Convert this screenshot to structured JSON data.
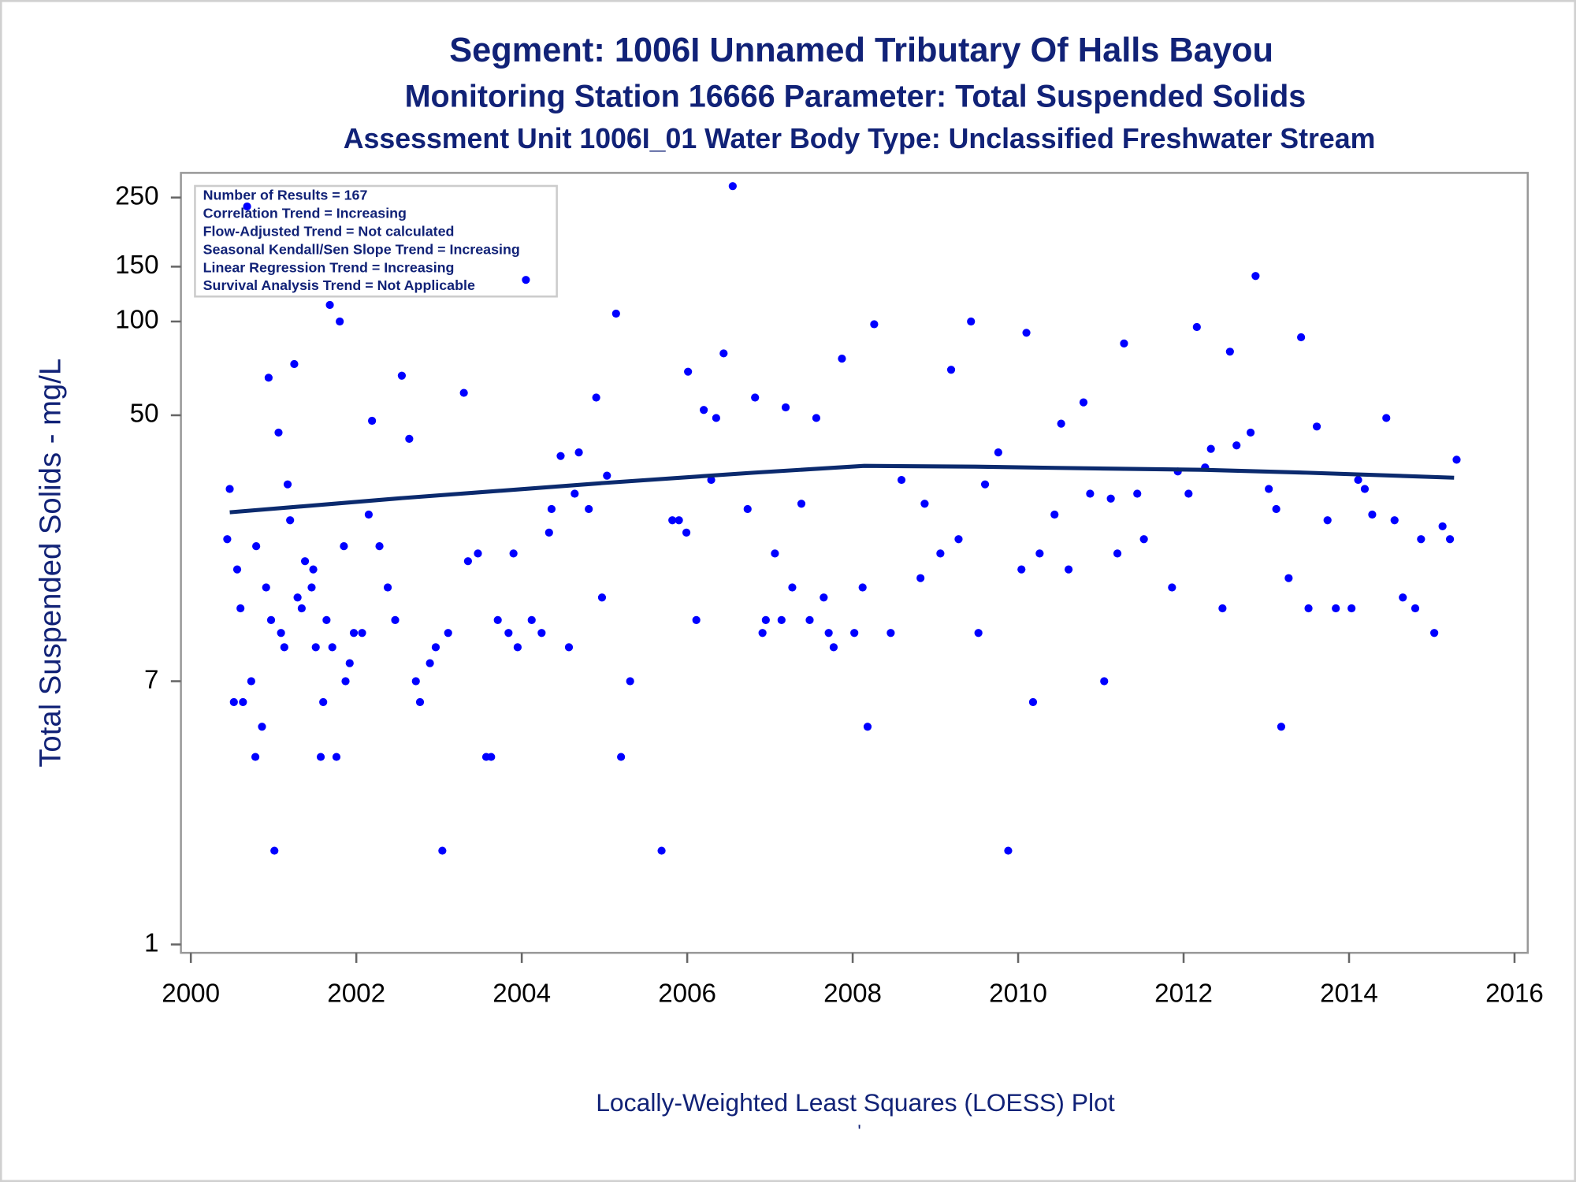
{
  "chart_data": {
    "type": "scatter",
    "title": "Segment: 1006I  Unnamed Tributary Of Halls Bayou",
    "subtitles": [
      "Monitoring Station 16666 Parameter: Total Suspended Solids",
      "Assessment Unit 1006I_01   Water Body Type: Unclassified Freshwater Stream"
    ],
    "annotations": [
      "Number of Results = 167",
      "Correlation Trend = Increasing",
      "Flow-Adjusted Trend = Not calculated",
      "Seasonal Kendall/Sen Slope Trend = Increasing",
      "Linear Regression Trend = Increasing",
      "Survival Analysis Trend = Not Applicable"
    ],
    "ylabel": "Total Suspended Solids - mg/L",
    "footnote": "Locally-Weighted Least Squares (LOESS) Plot",
    "footnote_mark": "'",
    "log_y": true,
    "xlim": [
      1999.88,
      2016.16
    ],
    "xticks": [
      2000,
      2002,
      2004,
      2006,
      2008,
      2010,
      2012,
      2014,
      2016
    ],
    "ylim": [
      0.94,
      300
    ],
    "yticks": [
      1,
      7,
      50,
      100,
      150,
      250
    ],
    "series": [
      {
        "type": "scatter",
        "color": "#0000ff",
        "x": [
          2000.44,
          2000.47,
          2000.52,
          2000.56,
          2000.6,
          2000.63,
          2000.68,
          2000.73,
          2000.78,
          2000.79,
          2000.86,
          2000.91,
          2000.94,
          2000.97,
          2001.01,
          2001.06,
          2001.09,
          2001.13,
          2001.17,
          2001.2,
          2001.25,
          2001.29,
          2001.34,
          2001.38,
          2001.46,
          2001.48,
          2001.51,
          2001.57,
          2001.6,
          2001.64,
          2001.68,
          2001.71,
          2001.76,
          2001.8,
          2001.85,
          2001.87,
          2001.92,
          2001.97,
          2002.07,
          2002.15,
          2002.19,
          2002.28,
          2002.38,
          2002.47,
          2002.55,
          2002.64,
          2002.72,
          2002.77,
          2002.89,
          2002.96,
          2003.04,
          2003.11,
          2003.3,
          2003.35,
          2003.47,
          2003.57,
          2003.63,
          2003.71,
          2003.84,
          2003.9,
          2003.95,
          2004.05,
          2004.12,
          2004.24,
          2004.33,
          2004.36,
          2004.47,
          2004.57,
          2004.64,
          2004.69,
          2004.81,
          2004.9,
          2004.97,
          2005.03,
          2005.14,
          2005.2,
          2005.31,
          2005.69,
          2005.82,
          2005.9,
          2005.99,
          2006.01,
          2006.11,
          2006.2,
          2006.29,
          2006.35,
          2006.44,
          2006.55,
          2006.73,
          2006.82,
          2006.91,
          2006.95,
          2007.06,
          2007.14,
          2007.19,
          2007.27,
          2007.38,
          2007.48,
          2007.56,
          2007.65,
          2007.71,
          2007.77,
          2007.87,
          2008.02,
          2008.12,
          2008.18,
          2008.26,
          2008.46,
          2008.59,
          2008.82,
          2008.87,
          2009.06,
          2009.19,
          2009.28,
          2009.43,
          2009.52,
          2009.6,
          2009.76,
          2009.88,
          2010.04,
          2010.1,
          2010.18,
          2010.26,
          2010.44,
          2010.52,
          2010.61,
          2010.79,
          2010.87,
          2011.04,
          2011.12,
          2011.2,
          2011.28,
          2011.44,
          2011.52,
          2011.86,
          2011.93,
          2012.06,
          2012.16,
          2012.26,
          2012.33,
          2012.47,
          2012.56,
          2012.64,
          2012.81,
          2012.87,
          2013.03,
          2013.12,
          2013.18,
          2013.27,
          2013.42,
          2013.51,
          2013.61,
          2013.74,
          2013.84,
          2014.03,
          2014.11,
          2014.19,
          2014.28,
          2014.45,
          2014.55,
          2014.65,
          2014.8,
          2014.87,
          2015.03,
          2015.13,
          2015.22,
          2015.3
        ],
        "values": [
          20,
          29,
          6,
          16,
          12,
          6,
          234,
          7,
          4,
          19,
          5,
          14,
          66,
          11,
          2,
          44,
          10,
          9,
          30,
          23,
          73,
          13,
          12,
          17,
          14,
          16,
          9,
          4,
          6,
          11,
          113,
          9,
          4,
          100,
          19,
          7,
          8,
          10,
          10,
          24,
          48,
          19,
          14,
          11,
          67,
          42,
          7,
          6,
          8,
          9,
          2,
          10,
          59,
          17,
          18,
          4,
          4,
          11,
          10,
          18,
          9,
          136,
          11,
          10,
          21,
          25,
          37,
          9,
          28,
          38,
          25,
          57,
          13,
          32,
          106,
          4,
          7,
          2,
          23,
          23,
          21,
          69,
          11,
          52,
          31,
          49,
          79,
          272,
          25,
          57,
          10,
          11,
          18,
          11,
          53,
          14,
          26,
          11,
          49,
          13,
          10,
          9,
          76,
          10,
          14,
          5,
          98,
          10,
          31,
          15,
          26,
          18,
          70,
          20,
          100,
          10,
          30,
          38,
          2,
          16,
          92,
          6,
          18,
          24,
          47,
          16,
          55,
          28,
          7,
          27,
          18,
          85,
          28,
          20,
          14,
          33,
          28,
          96,
          34,
          39,
          12,
          80,
          40,
          44,
          140,
          29,
          25,
          5,
          15,
          89,
          12,
          46,
          23,
          12,
          12,
          31,
          29,
          24,
          49,
          23,
          13,
          12,
          20,
          10,
          22,
          20,
          36
        ]
      },
      {
        "type": "line",
        "color": "#0b2a6e",
        "x": [
          2000.47,
          2002.55,
          2004.98,
          2006.8,
          2008.14,
          2009.48,
          2010.45,
          2012.27,
          2013.49,
          2015.27
        ],
        "values": [
          24.4,
          27.1,
          30.3,
          32.7,
          34.4,
          34.2,
          33.9,
          33.4,
          32.7,
          31.5
        ]
      }
    ]
  }
}
